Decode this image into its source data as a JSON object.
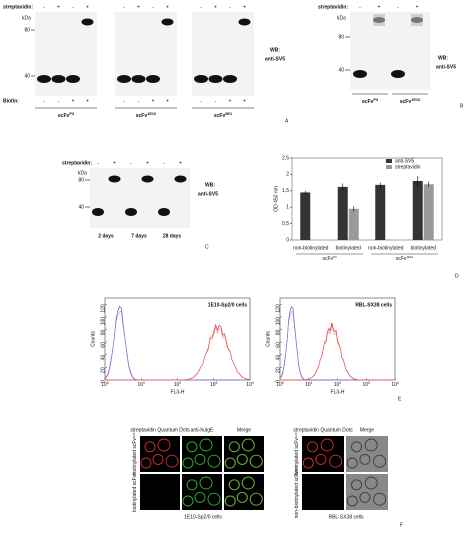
{
  "panel_a": {
    "strep_label": "streptavidin:",
    "strep": [
      "-",
      "+",
      "-",
      "+",
      "-",
      "+",
      "-",
      "+",
      "-",
      "+",
      "-",
      "+"
    ],
    "kda": "kDa",
    "markers": [
      "80",
      "40"
    ],
    "biotin_label": "Biotin:",
    "biotin": [
      "-",
      "-",
      "+",
      "+",
      "-",
      "-",
      "+",
      "+",
      "-",
      "-",
      "+",
      "+"
    ],
    "groups": [
      {
        "name": "scFv",
        "sup": "P3"
      },
      {
        "name": "scFv",
        "sup": "1E10"
      },
      {
        "name": "scFv",
        "sup": "9E1"
      }
    ],
    "wb": "WB:",
    "antibody": "anti-SV5",
    "letter": "A"
  },
  "panel_b": {
    "strep_label": "streptavidin:",
    "strep": [
      "-",
      "+",
      "-",
      "+"
    ],
    "kda": "kDa",
    "markers": [
      "80",
      "40"
    ],
    "groups": [
      {
        "name": "scFv",
        "sup": "P3"
      },
      {
        "name": "scFv",
        "sup": "1E10"
      }
    ],
    "wb": "WB:",
    "antibody": "anti-SV5",
    "letter": "B"
  },
  "panel_c": {
    "strep_label": "streptavidin:",
    "strep": [
      "-",
      "+",
      "-",
      "+",
      "-",
      "+"
    ],
    "kda": "kDa",
    "markers": [
      "80",
      "40"
    ],
    "times": [
      "2 days",
      "7 days",
      "28 days"
    ],
    "wb": "WB:",
    "antibody": "anti-SV5",
    "letter": "C"
  },
  "chart_data": {
    "type": "bar",
    "ylabel": "OD 450 nm",
    "categories": [
      "non-biotinylated",
      "biotinylated",
      "non-biotinylated",
      "biotinylated"
    ],
    "groups": [
      {
        "name": "scFv",
        "sup": "P3"
      },
      {
        "name": "scFv",
        "sup": "1E10"
      }
    ],
    "series": [
      {
        "name": "anti-SV5",
        "color": "#333333",
        "values": [
          1.45,
          1.62,
          1.68,
          1.8
        ],
        "errors": [
          0.05,
          0.1,
          0.07,
          0.15
        ]
      },
      {
        "name": "streptavidin",
        "color": "#9a9a9a",
        "values": [
          0,
          0.95,
          0,
          1.7
        ],
        "errors": [
          0,
          0.08,
          0,
          0.08
        ]
      }
    ],
    "ylim": [
      0,
      2.5
    ],
    "yticks": [
      0,
      {
        "value": 0.5,
        "label": "0,5"
      },
      1,
      {
        "value": 1.5,
        "label": "1,5"
      },
      2,
      {
        "value": 2.5,
        "label": "2,5"
      }
    ],
    "grid": false,
    "legend": "top-right",
    "letter": "D"
  },
  "panel_e": {
    "titles": [
      "1E10-Sp2/0 cells",
      "RBL-SX38 cells"
    ],
    "ylabel": "Counts",
    "xlabel": "FL3-H",
    "yticks": [
      0,
      20,
      40,
      60,
      80,
      100,
      120
    ],
    "xtick_base": "10",
    "xtick_exps": [
      0,
      1,
      2,
      3,
      4
    ],
    "letter": "E"
  },
  "panel_f": {
    "left": {
      "headers": [
        "streptavidin Quantum Dots",
        "anti-huIgE",
        "Merge"
      ],
      "rows": [
        {
          "name": "biotinylated scFv",
          "sup": "1E10"
        },
        {
          "name": "biotinylated scFv",
          "sup": "P3"
        }
      ],
      "caption": "1E10-Sp2/0 cells"
    },
    "right": {
      "headers": [
        "streptavidin Quantum Dots",
        "Merge"
      ],
      "rows": [
        {
          "name": "biotinylated scFv",
          "sup": "1E10"
        },
        {
          "name": "non-biotinylated scFv",
          "sup": "1E10"
        }
      ],
      "caption": "RBL-SX38 cells"
    },
    "letter": "F"
  }
}
